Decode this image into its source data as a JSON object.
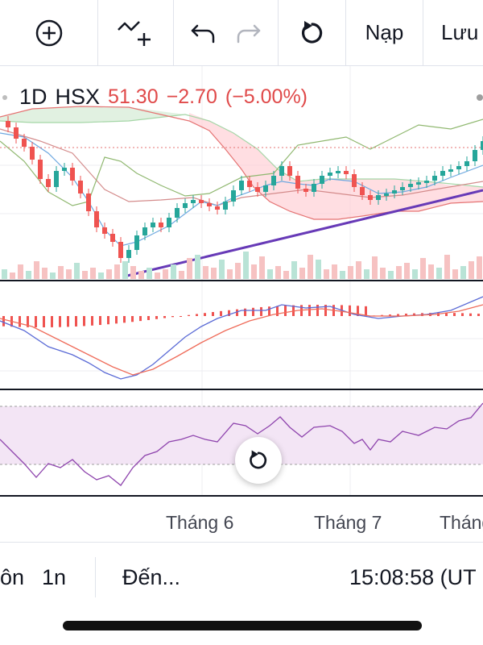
{
  "toolbar": {
    "add_icon": "plus-circle-icon",
    "indicator_icon": "add-indicator-icon",
    "undo_icon": "undo-icon",
    "redo_icon": "redo-icon",
    "reset_icon": "refresh-icon",
    "load_label": "Nạp",
    "save_label": "Lưu"
  },
  "symbol": {
    "interval": "1D",
    "exchange": "HSX",
    "price": "51.30",
    "change": "−2.70",
    "change_pct": "(−5.00%)"
  },
  "x_axis": {
    "labels": [
      "Tháng 6",
      "Tháng 7",
      "Tháng"
    ]
  },
  "bottom": {
    "range_cut": "ôn",
    "range_1n": "1n",
    "goto_label": "Đến...",
    "clock": "15:08:58 (UT"
  },
  "colors": {
    "up": "#26a69a",
    "down": "#ef5350",
    "trendline": "#673ab7",
    "rsi_band": "#f3e5f5",
    "rsi_line": "#8e44ad",
    "macd_line": "#5b6bd6",
    "signal_line": "#ef6c5a"
  }
}
